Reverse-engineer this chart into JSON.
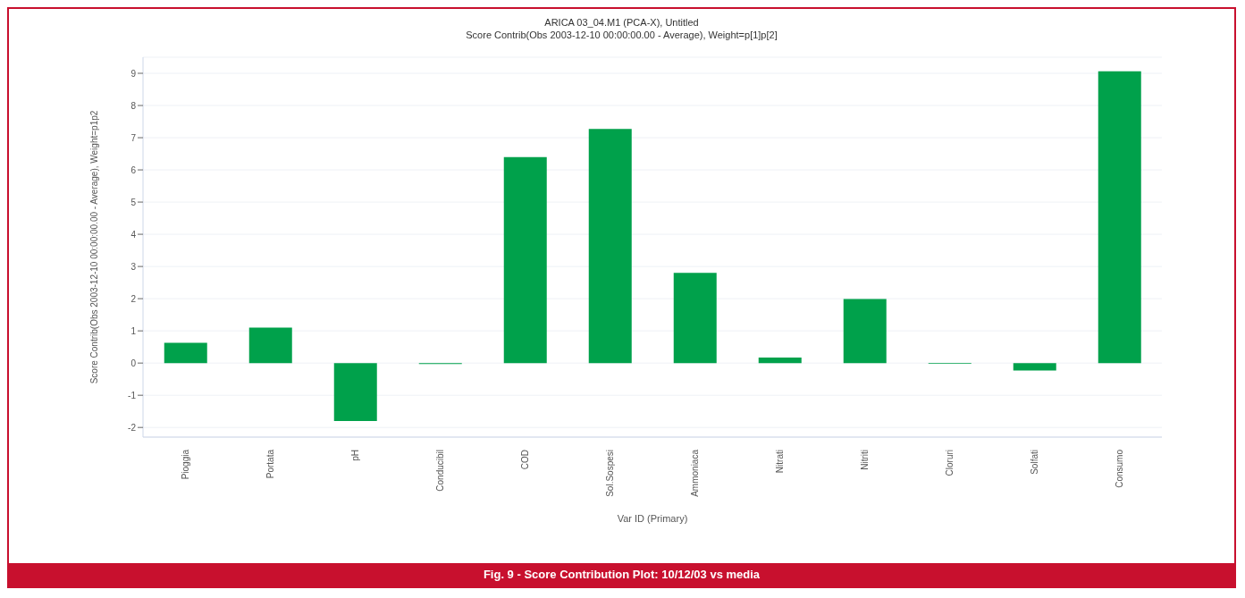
{
  "chart_data": {
    "type": "bar",
    "title": "ARICA 03_04.M1 (PCA-X), Untitled",
    "subtitle": "Score Contrib(Obs 2003-12-10 00:00:00.00 - Average), Weight=p[1]p[2]",
    "xlabel": "Var ID (Primary)",
    "ylabel": "Score Contrib(Obs 2003-12-10 00:00:00.00 - Average), Weight=p1p2",
    "categories": [
      "Pioggia",
      "Portata",
      "pH",
      "Conducibil",
      "COD",
      "Sol.Sospesi",
      "Ammoniaca",
      "Nitrati",
      "Nitriti",
      "Cloruri",
      "Solfati",
      "Consumo"
    ],
    "values": [
      0.63,
      1.1,
      -1.8,
      -0.03,
      6.4,
      7.27,
      2.8,
      0.17,
      1.99,
      -0.02,
      -0.23,
      9.06
    ],
    "color": "#00a14b",
    "ylim": [
      -2.3,
      9.5
    ],
    "yticks": [
      -2,
      -1,
      0,
      1,
      2,
      3,
      4,
      5,
      6,
      7,
      8,
      9
    ],
    "grid": "y",
    "annotations": [
      "Fig. 9 - Score Contribution Plot: 10/12/03 vs media"
    ]
  }
}
